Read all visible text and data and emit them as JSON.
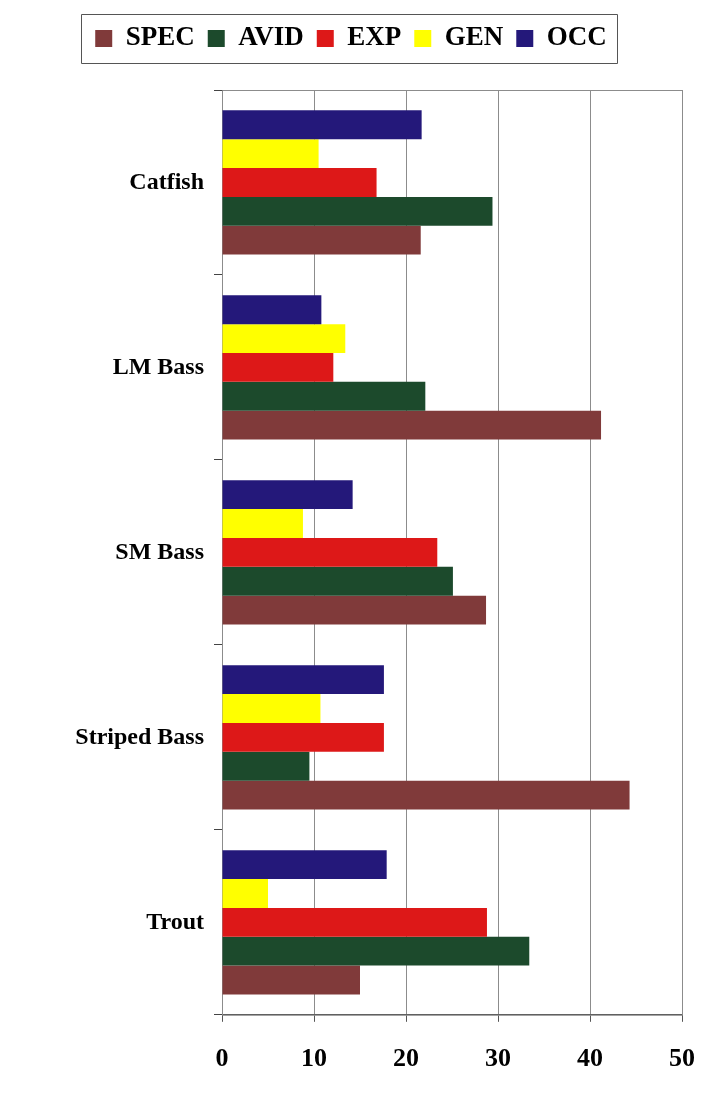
{
  "chart_data": {
    "type": "bar",
    "orientation": "horizontal",
    "categories": [
      "Catfish",
      "LM Bass",
      "SM Bass",
      "Striped Bass",
      "Trout"
    ],
    "series": [
      {
        "name": "SPEC",
        "color": "#803a3a",
        "values": [
          21.6,
          41.2,
          28.7,
          44.3,
          15.0
        ]
      },
      {
        "name": "AVID",
        "color": "#1c4a2c",
        "values": [
          29.4,
          22.1,
          25.1,
          9.5,
          33.4
        ]
      },
      {
        "name": "EXP",
        "color": "#dd1818",
        "values": [
          16.8,
          12.1,
          23.4,
          17.6,
          28.8
        ]
      },
      {
        "name": "GEN",
        "color": "#ffff00",
        "values": [
          10.5,
          13.4,
          8.8,
          10.7,
          5.0
        ]
      },
      {
        "name": "OCC",
        "color": "#24187a",
        "values": [
          21.7,
          10.8,
          14.2,
          17.6,
          17.9
        ]
      }
    ],
    "xlim": [
      0,
      50
    ],
    "xticks": [
      0,
      10,
      20,
      30,
      40,
      50
    ],
    "grid": "x",
    "legend": "top"
  }
}
